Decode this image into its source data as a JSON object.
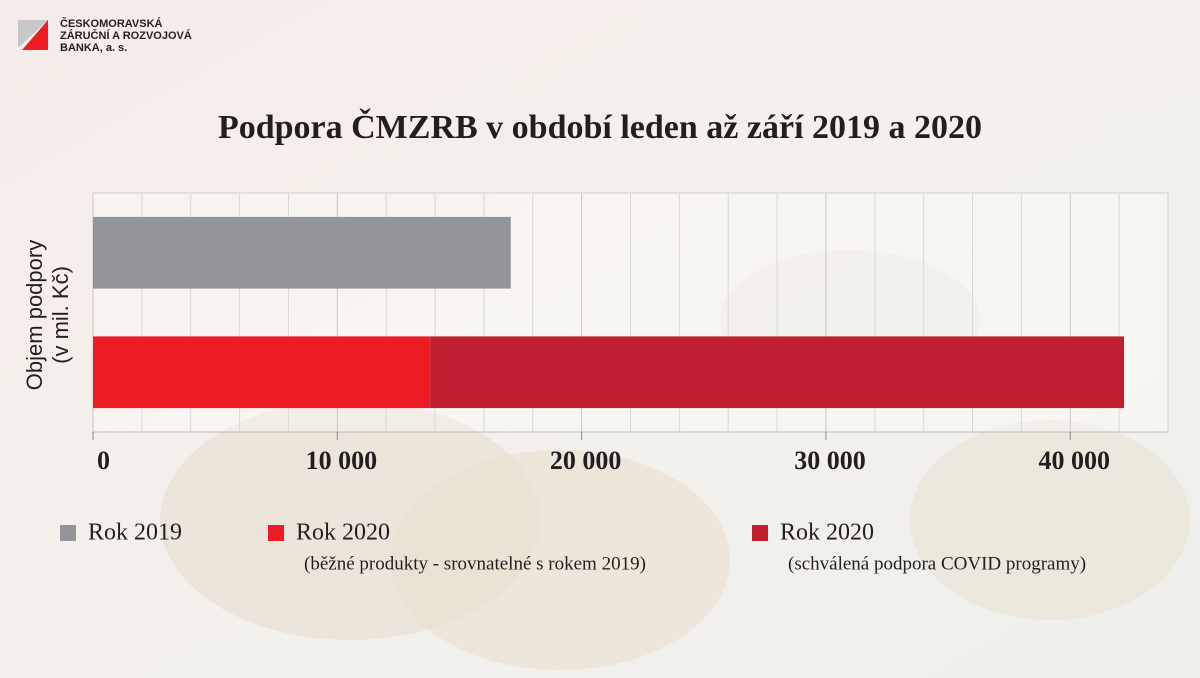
{
  "logo": [
    "ČESKOMORAVSKÁ",
    "ZÁRUČNÍ A ROZVOJOVÁ",
    "BANKA, a. s."
  ],
  "chart_data": {
    "type": "stacked-bar-horizontal",
    "title": "Podpora ČMZRB v období leden až září 2019 a 2020",
    "ylabel": [
      "Objem podpory",
      "(v mil. Kč)"
    ],
    "categories": [
      null,
      null
    ],
    "series": [
      {
        "name": "Rok 2019",
        "color": "#939598",
        "values": [
          17100,
          null
        ]
      },
      {
        "name": "Rok 2020",
        "note": "(běžné produkty - srovnatelné s rokem 2019)",
        "color": "#ed1c24",
        "values": [
          null,
          13800
        ]
      },
      {
        "name": "Rok 2020",
        "note": "(schválená podpora COVID programy)",
        "color": "#c01f2f",
        "values": [
          null,
          28400
        ]
      }
    ],
    "xlim": [
      0,
      44000
    ],
    "xticks": [
      0,
      {
        "value": 10000,
        "label": "10 000"
      },
      {
        "value": 20000,
        "label": "20 000"
      },
      {
        "value": 30000,
        "label": "30 000"
      },
      {
        "value": 40000,
        "label": "40 000"
      }
    ],
    "x_minor_ticks": [
      2000,
      4000,
      6000,
      8000,
      12000,
      14000,
      16000,
      18000,
      22000,
      24000,
      26000,
      28000,
      32000,
      34000,
      36000,
      38000,
      42000
    ],
    "grid": true
  }
}
